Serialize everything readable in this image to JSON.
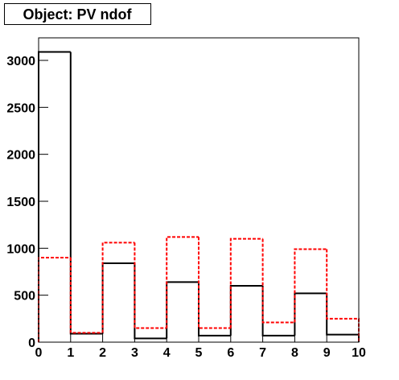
{
  "chart_data": {
    "type": "histogram",
    "title": "Object: PV ndof",
    "bins": [
      0,
      1,
      2,
      3,
      4,
      5,
      6,
      7,
      8,
      9,
      10
    ],
    "series": [
      {
        "color": "#000000",
        "values": [
          3090,
          90,
          840,
          40,
          640,
          70,
          600,
          70,
          520,
          80
        ]
      },
      {
        "color": "#ff0000",
        "values": [
          900,
          100,
          1060,
          150,
          1120,
          150,
          1100,
          210,
          990,
          250
        ]
      }
    ],
    "xlim": [
      0,
      10
    ],
    "ylim": [
      0,
      3240
    ],
    "xticks": [
      0,
      1,
      2,
      3,
      4,
      5,
      6,
      7,
      8,
      9,
      10
    ],
    "yticks": [
      0,
      500,
      1000,
      1500,
      2000,
      2500,
      3000
    ]
  }
}
